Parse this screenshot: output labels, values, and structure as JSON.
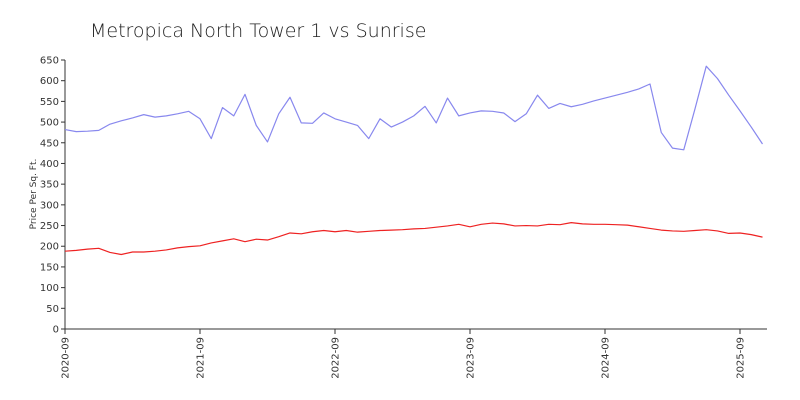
{
  "chart_data": {
    "type": "line",
    "title": "Metropica North Tower 1 vs Sunrise",
    "xlabel": "",
    "ylabel": "Price Per Sq. Ft.",
    "ylim": [
      0,
      650
    ],
    "yticks": [
      0,
      50,
      100,
      150,
      200,
      250,
      300,
      350,
      400,
      450,
      500,
      550,
      600,
      650
    ],
    "xlim": [
      "2020-09",
      "2025-11"
    ],
    "xticks": [
      "2020-09",
      "2021-09",
      "2022-09",
      "2023-09",
      "2024-09",
      "2025-09"
    ],
    "grid": false,
    "legend": "none",
    "series": [
      {
        "color": "#8888ee",
        "points": [
          [
            "2020-09",
            482
          ],
          [
            "2020-10",
            477
          ],
          [
            "2020-11",
            478
          ],
          [
            "2020-12",
            480
          ],
          [
            "2021-01",
            495
          ],
          [
            "2021-02",
            503
          ],
          [
            "2021-03",
            510
          ],
          [
            "2021-04",
            518
          ],
          [
            "2021-05",
            512
          ],
          [
            "2021-06",
            515
          ],
          [
            "2021-07",
            520
          ],
          [
            "2021-08",
            526
          ],
          [
            "2021-09",
            508
          ],
          [
            "2021-10",
            460
          ],
          [
            "2021-11",
            535
          ],
          [
            "2021-12",
            515
          ],
          [
            "2022-01",
            567
          ],
          [
            "2022-02",
            492
          ],
          [
            "2022-03",
            452
          ],
          [
            "2022-04",
            520
          ],
          [
            "2022-05",
            560
          ],
          [
            "2022-06",
            498
          ],
          [
            "2022-07",
            497
          ],
          [
            "2022-08",
            522
          ],
          [
            "2022-09",
            508
          ],
          [
            "2022-10",
            500
          ],
          [
            "2022-11",
            492
          ],
          [
            "2022-12",
            460
          ],
          [
            "2023-01",
            508
          ],
          [
            "2023-02",
            488
          ],
          [
            "2023-03",
            500
          ],
          [
            "2023-04",
            515
          ],
          [
            "2023-05",
            538
          ],
          [
            "2023-06",
            498
          ],
          [
            "2023-07",
            558
          ],
          [
            "2023-08",
            515
          ],
          [
            "2023-09",
            522
          ],
          [
            "2023-10",
            527
          ],
          [
            "2023-11",
            526
          ],
          [
            "2023-12",
            522
          ],
          [
            "2024-01",
            501
          ],
          [
            "2024-02",
            520
          ],
          [
            "2024-03",
            565
          ],
          [
            "2024-04",
            533
          ],
          [
            "2024-05",
            545
          ],
          [
            "2024-06",
            537
          ],
          [
            "2024-07",
            543
          ],
          [
            "2024-08",
            551
          ],
          [
            "2024-09",
            558
          ],
          [
            "2024-10",
            565
          ],
          [
            "2024-11",
            572
          ],
          [
            "2024-12",
            580
          ],
          [
            "2025-01",
            592
          ],
          [
            "2025-02",
            475
          ],
          [
            "2025-03",
            437
          ],
          [
            "2025-04",
            433
          ],
          [
            "2025-05",
            532
          ],
          [
            "2025-06",
            635
          ],
          [
            "2025-07",
            605
          ],
          [
            "2025-08",
            565
          ],
          [
            "2025-09",
            527
          ],
          [
            "2025-10",
            488
          ],
          [
            "2025-11",
            447
          ]
        ]
      },
      {
        "color": "#ee2222",
        "points": [
          [
            "2020-09",
            188
          ],
          [
            "2020-10",
            190
          ],
          [
            "2020-11",
            193
          ],
          [
            "2020-12",
            195
          ],
          [
            "2021-01",
            185
          ],
          [
            "2021-02",
            180
          ],
          [
            "2021-03",
            186
          ],
          [
            "2021-04",
            186
          ],
          [
            "2021-05",
            188
          ],
          [
            "2021-06",
            191
          ],
          [
            "2021-07",
            196
          ],
          [
            "2021-08",
            199
          ],
          [
            "2021-09",
            201
          ],
          [
            "2021-10",
            208
          ],
          [
            "2021-11",
            213
          ],
          [
            "2021-12",
            218
          ],
          [
            "2022-01",
            211
          ],
          [
            "2022-02",
            217
          ],
          [
            "2022-03",
            215
          ],
          [
            "2022-04",
            223
          ],
          [
            "2022-05",
            232
          ],
          [
            "2022-06",
            230
          ],
          [
            "2022-07",
            235
          ],
          [
            "2022-08",
            238
          ],
          [
            "2022-09",
            235
          ],
          [
            "2022-10",
            238
          ],
          [
            "2022-11",
            234
          ],
          [
            "2022-12",
            236
          ],
          [
            "2023-01",
            238
          ],
          [
            "2023-02",
            239
          ],
          [
            "2023-03",
            240
          ],
          [
            "2023-04",
            242
          ],
          [
            "2023-05",
            243
          ],
          [
            "2023-06",
            246
          ],
          [
            "2023-07",
            249
          ],
          [
            "2023-08",
            253
          ],
          [
            "2023-09",
            247
          ],
          [
            "2023-10",
            253
          ],
          [
            "2023-11",
            256
          ],
          [
            "2023-12",
            254
          ],
          [
            "2024-01",
            249
          ],
          [
            "2024-02",
            250
          ],
          [
            "2024-03",
            249
          ],
          [
            "2024-04",
            253
          ],
          [
            "2024-05",
            252
          ],
          [
            "2024-06",
            257
          ],
          [
            "2024-07",
            254
          ],
          [
            "2024-08",
            253
          ],
          [
            "2024-09",
            253
          ],
          [
            "2024-10",
            252
          ],
          [
            "2024-11",
            251
          ],
          [
            "2024-12",
            247
          ],
          [
            "2025-01",
            243
          ],
          [
            "2025-02",
            239
          ],
          [
            "2025-03",
            237
          ],
          [
            "2025-04",
            236
          ],
          [
            "2025-05",
            238
          ],
          [
            "2025-06",
            240
          ],
          [
            "2025-07",
            237
          ],
          [
            "2025-08",
            231
          ],
          [
            "2025-09",
            232
          ],
          [
            "2025-10",
            228
          ],
          [
            "2025-11",
            222
          ]
        ]
      }
    ]
  }
}
